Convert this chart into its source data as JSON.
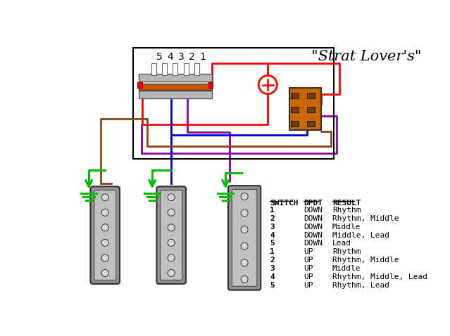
{
  "title": "\"Strat Lover's\"",
  "bg_color": "#ffffff",
  "switch_labels": [
    "5",
    "4",
    "3",
    "2",
    "1"
  ],
  "table_headers": [
    "SWITCH",
    "DPDT",
    "RESULT"
  ],
  "table_data": [
    [
      "1",
      "DOWN",
      "Rhythm"
    ],
    [
      "2",
      "DOWN",
      "Rhythm, Middle"
    ],
    [
      "3",
      "DOWN",
      "Middle"
    ],
    [
      "4",
      "DOWN",
      "Middle, Lead"
    ],
    [
      "5",
      "DOWN",
      "Lead"
    ],
    [
      "1",
      "UP",
      "Rhythm"
    ],
    [
      "2",
      "UP",
      "Rhythm, Middle"
    ],
    [
      "3",
      "UP",
      "Middle"
    ],
    [
      "4",
      "UP",
      "Rhythm, Middle, Lead"
    ],
    [
      "5",
      "UP",
      "Rhythm, Lead"
    ]
  ],
  "wire_red": "#ff0000",
  "wire_blue": "#0000cc",
  "wire_purple": "#8800aa",
  "wire_brown": "#8B4513",
  "wire_green": "#00bb00",
  "wire_orange": "#ff7700",
  "switch_rail_color": "#cc5500",
  "dpdt_color": "#cc6600",
  "dpdt_hole_color": "#7a3b00",
  "cap_color": "#ff0000",
  "pickup_outer": "#808080",
  "pickup_inner": "#b0b0b0",
  "pickup_pole": "#d0d0d0",
  "box_edge": "#000000",
  "lw": 2.0
}
